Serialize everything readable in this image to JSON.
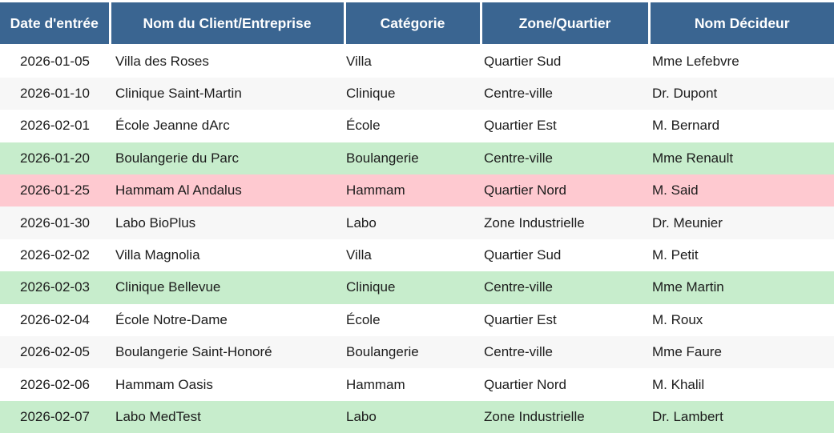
{
  "table": {
    "columns": [
      {
        "id": "date",
        "label": "Date d'entrée"
      },
      {
        "id": "client",
        "label": "Nom du Client/Entreprise"
      },
      {
        "id": "categorie",
        "label": "Catégorie"
      },
      {
        "id": "zone",
        "label": "Zone/Quartier"
      },
      {
        "id": "decideur",
        "label": "Nom Décideur"
      }
    ],
    "rows": [
      {
        "date": "2026-01-05",
        "client": "Villa des Roses",
        "categorie": "Villa",
        "zone": "Quartier Sud",
        "decideur": "Mme Lefebvre",
        "highlight": "none"
      },
      {
        "date": "2026-01-10",
        "client": "Clinique Saint-Martin",
        "categorie": "Clinique",
        "zone": "Centre-ville",
        "decideur": "Dr. Dupont",
        "highlight": "none"
      },
      {
        "date": "2026-02-01",
        "client": "École Jeanne dArc",
        "categorie": "École",
        "zone": "Quartier Est",
        "decideur": "M. Bernard",
        "highlight": "none"
      },
      {
        "date": "2026-01-20",
        "client": "Boulangerie du Parc",
        "categorie": "Boulangerie",
        "zone": "Centre-ville",
        "decideur": "Mme Renault",
        "highlight": "green"
      },
      {
        "date": "2026-01-25",
        "client": "Hammam Al Andalus",
        "categorie": "Hammam",
        "zone": "Quartier Nord",
        "decideur": "M. Said",
        "highlight": "pink"
      },
      {
        "date": "2026-01-30",
        "client": "Labo BioPlus",
        "categorie": "Labo",
        "zone": "Zone Industrielle",
        "decideur": "Dr. Meunier",
        "highlight": "none"
      },
      {
        "date": "2026-02-02",
        "client": "Villa Magnolia",
        "categorie": "Villa",
        "zone": "Quartier Sud",
        "decideur": "M. Petit",
        "highlight": "none"
      },
      {
        "date": "2026-02-03",
        "client": "Clinique Bellevue",
        "categorie": "Clinique",
        "zone": "Centre-ville",
        "decideur": "Mme Martin",
        "highlight": "green"
      },
      {
        "date": "2026-02-04",
        "client": "École Notre-Dame",
        "categorie": "École",
        "zone": "Quartier Est",
        "decideur": "M. Roux",
        "highlight": "none"
      },
      {
        "date": "2026-02-05",
        "client": "Boulangerie Saint-Honoré",
        "categorie": "Boulangerie",
        "zone": "Centre-ville",
        "decideur": "Mme Faure",
        "highlight": "none"
      },
      {
        "date": "2026-02-06",
        "client": "Hammam Oasis",
        "categorie": "Hammam",
        "zone": "Quartier Nord",
        "decideur": "M. Khalil",
        "highlight": "none"
      },
      {
        "date": "2026-02-07",
        "client": "Labo MedTest",
        "categorie": "Labo",
        "zone": "Zone Industrielle",
        "decideur": "Dr. Lambert",
        "highlight": "green"
      }
    ]
  },
  "colors": {
    "header_bg": "#3a6591",
    "header_text": "#ffffff",
    "row_alt_bg": "#f7f7f7",
    "highlight_green": "#c7edcc",
    "highlight_pink": "#fec9d0",
    "text": "#1c1c1c",
    "page_bg": "#ffffff"
  }
}
